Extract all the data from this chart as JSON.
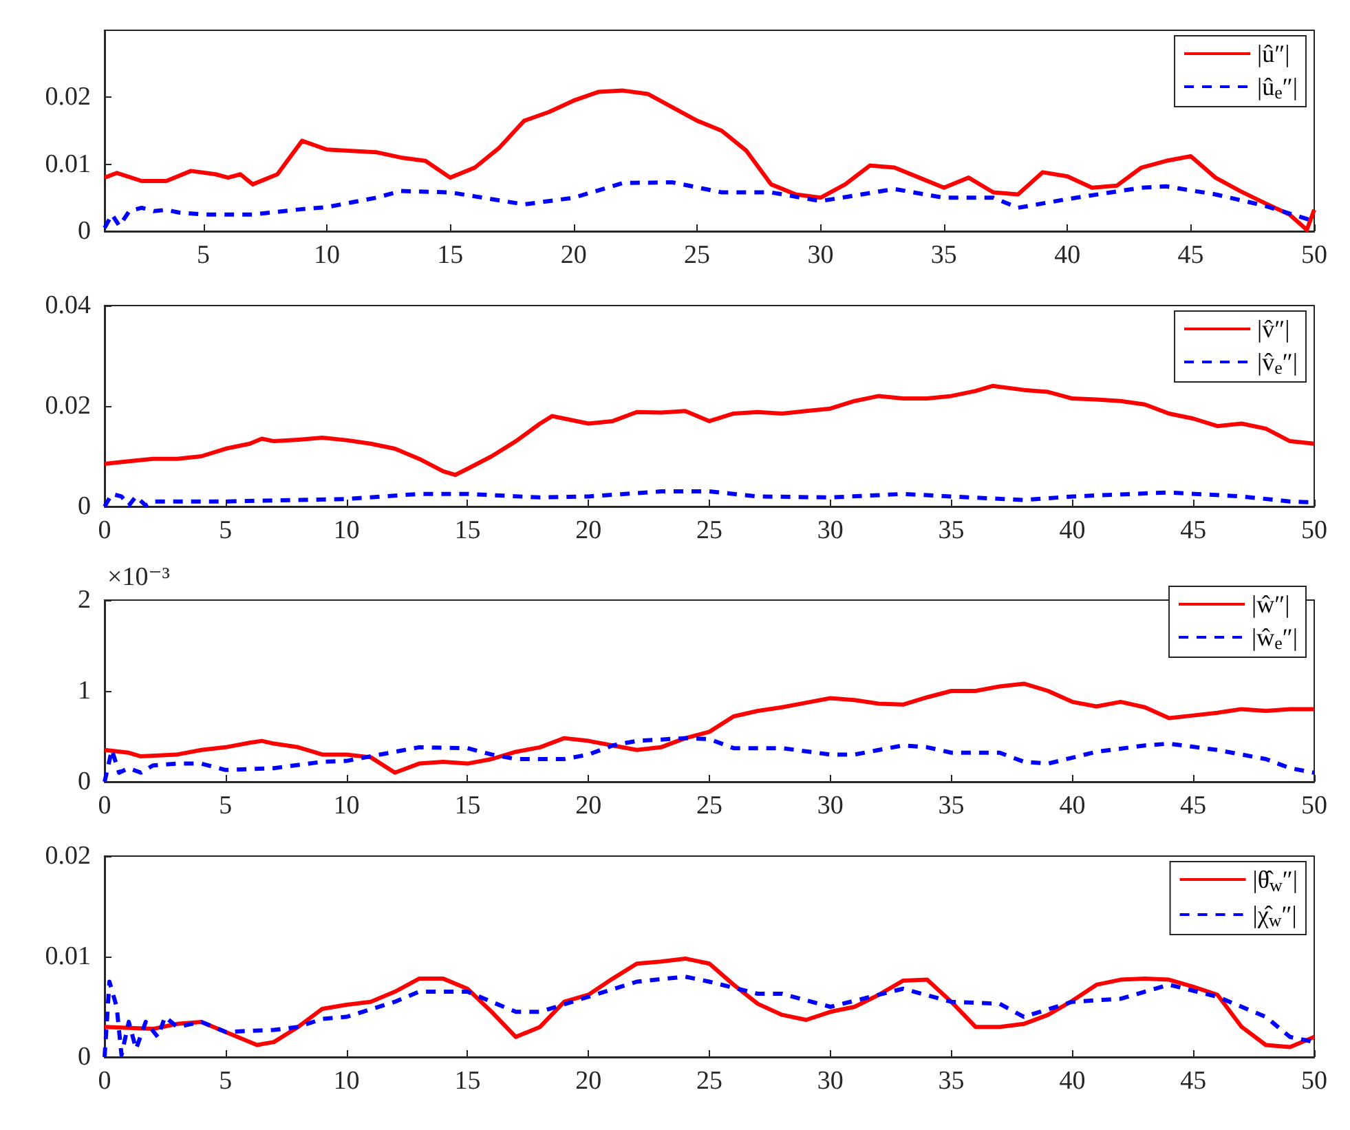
{
  "chart_data": [
    {
      "type": "line",
      "xlim": [
        1,
        50
      ],
      "xticks": [
        5,
        10,
        15,
        20,
        25,
        30,
        35,
        40,
        45,
        50
      ],
      "ylim": [
        0,
        0.03
      ],
      "yticks": [
        0,
        0.01,
        0.02
      ],
      "legend": "top right",
      "series": [
        {
          "name": "|û″|",
          "color": "#ff0000",
          "line_style": "solid",
          "x": [
            1,
            1.5,
            2.5,
            3.5,
            4.5,
            5.5,
            6,
            6.5,
            7,
            8,
            9,
            10,
            11,
            12,
            13,
            14,
            15,
            16,
            17,
            18,
            19,
            20,
            21,
            22,
            23,
            24,
            25,
            26,
            27,
            28,
            29,
            30,
            31,
            32,
            33,
            34,
            35,
            36,
            37,
            38,
            39,
            40,
            41,
            42,
            43,
            44,
            45,
            46,
            47,
            48,
            49,
            49.7,
            50
          ],
          "values": [
            0.008,
            0.0087,
            0.0075,
            0.0075,
            0.009,
            0.0085,
            0.008,
            0.0085,
            0.007,
            0.0085,
            0.0135,
            0.0122,
            0.012,
            0.0118,
            0.011,
            0.0105,
            0.008,
            0.0095,
            0.0125,
            0.0165,
            0.0178,
            0.0195,
            0.0208,
            0.021,
            0.0205,
            0.0185,
            0.0165,
            0.015,
            0.012,
            0.007,
            0.0055,
            0.005,
            0.007,
            0.0098,
            0.0095,
            0.008,
            0.0065,
            0.008,
            0.0058,
            0.0055,
            0.0088,
            0.0082,
            0.0065,
            0.0068,
            0.0095,
            0.0105,
            0.0112,
            0.008,
            0.006,
            0.0042,
            0.0025,
            0.0002,
            0.0032
          ]
        },
        {
          "name": "|û$_{e}$″|",
          "color": "#0000ff",
          "line_style": "dashed",
          "x": [
            1,
            1.3,
            1.6,
            2,
            2.5,
            3,
            3.5,
            4,
            5,
            7,
            9,
            10,
            12,
            13,
            15,
            16,
            18,
            20,
            22,
            24,
            26,
            28,
            30,
            33,
            35,
            37,
            38,
            40,
            43,
            44,
            46,
            48,
            50
          ],
          "values": [
            0.0005,
            0.0025,
            0.0008,
            0.003,
            0.0035,
            0.003,
            0.0032,
            0.0028,
            0.0025,
            0.0025,
            0.0033,
            0.0036,
            0.005,
            0.006,
            0.0058,
            0.0052,
            0.004,
            0.005,
            0.0072,
            0.0073,
            0.0058,
            0.0058,
            0.0045,
            0.0063,
            0.005,
            0.005,
            0.0035,
            0.0048,
            0.0065,
            0.0067,
            0.0055,
            0.0038,
            0.0015
          ]
        }
      ]
    },
    {
      "type": "line",
      "xlim": [
        0,
        50
      ],
      "xticks": [
        0,
        5,
        10,
        15,
        20,
        25,
        30,
        35,
        40,
        45,
        50
      ],
      "ylim": [
        0,
        0.04
      ],
      "yticks": [
        0,
        0.02,
        0.04
      ],
      "legend": "top right",
      "series": [
        {
          "name": "|v̂″|",
          "color": "#ff0000",
          "line_style": "solid",
          "x": [
            0,
            1,
            2,
            3,
            4,
            5,
            6,
            6.5,
            7,
            8,
            9,
            10,
            11,
            12,
            13,
            14,
            14.5,
            15,
            16,
            17,
            18,
            18.5,
            19,
            20,
            21,
            22,
            23,
            24,
            25,
            26,
            27,
            28,
            29,
            30,
            31,
            32,
            33,
            34,
            35,
            36,
            36.7,
            38,
            39,
            40,
            41,
            42,
            43,
            44,
            45,
            46,
            47,
            48,
            49,
            50
          ],
          "values": [
            0.0085,
            0.009,
            0.0095,
            0.0095,
            0.01,
            0.0115,
            0.0125,
            0.0135,
            0.013,
            0.0133,
            0.0137,
            0.0132,
            0.0125,
            0.0115,
            0.0095,
            0.007,
            0.0063,
            0.0075,
            0.01,
            0.013,
            0.0165,
            0.018,
            0.0175,
            0.0165,
            0.017,
            0.0188,
            0.0187,
            0.019,
            0.017,
            0.0185,
            0.0188,
            0.0185,
            0.019,
            0.0195,
            0.021,
            0.022,
            0.0215,
            0.0215,
            0.022,
            0.023,
            0.024,
            0.0232,
            0.0228,
            0.0215,
            0.0213,
            0.021,
            0.0203,
            0.0185,
            0.0175,
            0.016,
            0.0165,
            0.0155,
            0.013,
            0.0125
          ]
        },
        {
          "name": "|v̂$_{e}$″|",
          "color": "#0000ff",
          "line_style": "dashed",
          "x": [
            0,
            0.3,
            0.7,
            1,
            1.3,
            1.7,
            2,
            5,
            10,
            13,
            15,
            18,
            20,
            23,
            25,
            27,
            30,
            33,
            35,
            38,
            40,
            44,
            47,
            49,
            50
          ],
          "values": [
            0,
            0.0025,
            0.002,
            0.0002,
            0.002,
            0.0002,
            0.001,
            0.001,
            0.0015,
            0.0025,
            0.0025,
            0.0018,
            0.002,
            0.003,
            0.003,
            0.002,
            0.0018,
            0.0025,
            0.002,
            0.0013,
            0.002,
            0.0028,
            0.002,
            0.001,
            0.0008
          ]
        }
      ]
    },
    {
      "type": "line",
      "xlim": [
        0,
        50
      ],
      "xticks": [
        0,
        5,
        10,
        15,
        20,
        25,
        30,
        35,
        40,
        45,
        50
      ],
      "ylim": [
        0,
        2
      ],
      "yticks": [
        0,
        1,
        2
      ],
      "annotations": [
        "×10⁻³"
      ],
      "legend": "top right",
      "series": [
        {
          "name": "|ŵ″|",
          "color": "#ff0000",
          "line_style": "solid",
          "x": [
            0,
            1,
            1.5,
            3,
            4,
            5,
            6,
            6.5,
            7,
            8,
            9,
            10,
            11,
            12,
            13,
            14,
            15,
            16,
            17,
            18,
            19,
            20,
            21,
            22,
            23,
            24,
            25,
            26,
            27,
            28,
            29,
            30,
            31,
            32,
            33,
            34,
            35,
            36,
            37,
            38,
            39,
            40,
            41,
            42,
            43,
            44,
            45,
            46,
            47,
            48,
            49,
            50
          ],
          "values": [
            0.35,
            0.32,
            0.28,
            0.3,
            0.35,
            0.38,
            0.43,
            0.45,
            0.42,
            0.38,
            0.3,
            0.3,
            0.27,
            0.1,
            0.2,
            0.22,
            0.2,
            0.25,
            0.33,
            0.38,
            0.48,
            0.45,
            0.4,
            0.35,
            0.38,
            0.48,
            0.55,
            0.72,
            0.78,
            0.82,
            0.87,
            0.92,
            0.9,
            0.86,
            0.85,
            0.93,
            1.0,
            1.0,
            1.05,
            1.08,
            1.0,
            0.88,
            0.83,
            0.88,
            0.82,
            0.7,
            0.73,
            0.76,
            0.8,
            0.78,
            0.8,
            0.8
          ]
        },
        {
          "name": "|ŵ$_{e}$″|",
          "color": "#0000ff",
          "line_style": "dashed",
          "x": [
            0,
            0.3,
            0.6,
            1,
            1.5,
            2,
            3,
            4,
            5,
            7,
            9,
            10,
            12,
            13,
            15,
            16,
            17,
            19,
            20,
            21,
            22,
            24,
            25,
            26,
            28,
            30,
            31,
            33,
            34,
            35,
            37,
            38,
            39,
            41,
            43,
            44,
            46,
            48,
            49,
            50
          ],
          "values": [
            0,
            0.35,
            0.1,
            0.15,
            0.1,
            0.18,
            0.2,
            0.2,
            0.13,
            0.15,
            0.22,
            0.23,
            0.33,
            0.38,
            0.37,
            0.3,
            0.25,
            0.25,
            0.3,
            0.4,
            0.45,
            0.48,
            0.47,
            0.37,
            0.37,
            0.3,
            0.3,
            0.4,
            0.38,
            0.32,
            0.32,
            0.22,
            0.2,
            0.33,
            0.4,
            0.42,
            0.35,
            0.25,
            0.15,
            0.1
          ]
        }
      ]
    },
    {
      "type": "line",
      "xlim": [
        0,
        50
      ],
      "xticks": [
        0,
        5,
        10,
        15,
        20,
        25,
        30,
        35,
        40,
        45,
        50
      ],
      "ylim": [
        0,
        0.02
      ],
      "yticks": [
        0,
        0.01,
        0.02
      ],
      "legend": "top right",
      "series": [
        {
          "name": "|θ̂$_{w}$″|",
          "color": "#ff0000",
          "line_style": "solid",
          "x": [
            0,
            2,
            3,
            4,
            5,
            6.3,
            7,
            8,
            9,
            10,
            11,
            12,
            13,
            14,
            15,
            16,
            17,
            18,
            19,
            20,
            21,
            22,
            23,
            24,
            25,
            26,
            27,
            28,
            29,
            30,
            31,
            32,
            33,
            34,
            35,
            36,
            37,
            38,
            39,
            40,
            41,
            42,
            43,
            44,
            45,
            46,
            47,
            48,
            49,
            50
          ],
          "values": [
            0.003,
            0.0028,
            0.0033,
            0.0035,
            0.0025,
            0.0012,
            0.0015,
            0.003,
            0.0048,
            0.0052,
            0.0055,
            0.0065,
            0.0078,
            0.0078,
            0.0068,
            0.0045,
            0.002,
            0.003,
            0.0055,
            0.0062,
            0.0078,
            0.0093,
            0.0095,
            0.0098,
            0.0093,
            0.0072,
            0.0053,
            0.0042,
            0.0037,
            0.0045,
            0.005,
            0.0062,
            0.0076,
            0.0077,
            0.0055,
            0.003,
            0.003,
            0.0033,
            0.0042,
            0.0056,
            0.0072,
            0.0077,
            0.0078,
            0.0077,
            0.007,
            0.0062,
            0.003,
            0.0012,
            0.001,
            0.002
          ]
        },
        {
          "name": "|χ̂$_{w}$″|",
          "color": "#0000ff",
          "line_style": "dashed",
          "x": [
            0,
            0.2,
            0.5,
            0.7,
            1,
            1.3,
            1.7,
            2.2,
            2.5,
            3,
            4,
            5,
            7,
            8,
            9,
            10,
            12,
            13,
            15,
            17,
            18,
            20,
            22,
            24,
            25,
            27,
            28,
            30,
            33,
            35,
            37,
            38,
            40,
            42,
            44,
            46,
            48,
            49,
            50
          ],
          "values": [
            0,
            0.0075,
            0.005,
            0.0002,
            0.0035,
            0.0008,
            0.0035,
            0.002,
            0.004,
            0.003,
            0.0035,
            0.0025,
            0.0027,
            0.003,
            0.0038,
            0.004,
            0.0055,
            0.0065,
            0.0065,
            0.0045,
            0.0045,
            0.006,
            0.0075,
            0.008,
            0.0075,
            0.0063,
            0.0063,
            0.005,
            0.0068,
            0.0055,
            0.0053,
            0.004,
            0.0055,
            0.0058,
            0.0072,
            0.006,
            0.004,
            0.002,
            0.0015
          ]
        }
      ]
    }
  ]
}
